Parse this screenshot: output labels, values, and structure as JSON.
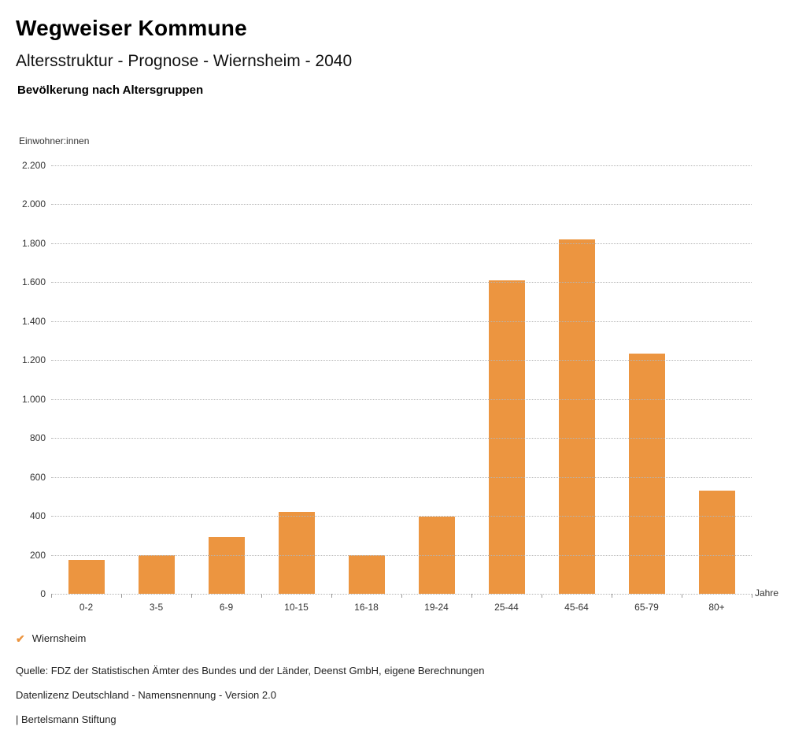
{
  "header": {
    "title": "Wegweiser Kommune",
    "subtitle": "Altersstruktur - Prognose - Wiernsheim - 2040",
    "chart_heading": "Bevölkerung nach Altersgruppen"
  },
  "chart_data": {
    "type": "bar",
    "title": "Bevölkerung nach Altersgruppen",
    "categories": [
      "0-2",
      "3-5",
      "6-9",
      "10-15",
      "16-18",
      "19-24",
      "25-44",
      "45-64",
      "65-79",
      "80+"
    ],
    "values": [
      175,
      200,
      290,
      420,
      200,
      395,
      1610,
      1820,
      1235,
      530
    ],
    "series_name": "Wiernsheim",
    "xlabel": "Jahre",
    "ylabel": "Einwohner:innen",
    "ylim": [
      0,
      2200
    ],
    "ytick_step": 200,
    "ytick_labels": [
      "0",
      "200",
      "400",
      "600",
      "800",
      "1.000",
      "1.200",
      "1.400",
      "1.600",
      "1.800",
      "2.000",
      "2.200"
    ],
    "grid": "horizontal-dotted",
    "legend_position": "bottom-left",
    "bar_color": "#EC9540"
  },
  "legend": {
    "items": [
      {
        "label": "Wiernsheim",
        "color": "#EC9540",
        "icon": "check-icon"
      }
    ]
  },
  "footer": {
    "source": "Quelle: FDZ der Statistischen Ämter des Bundes und der Länder, Deenst GmbH, eigene Berechnungen",
    "license": "Datenlizenz Deutschland - Namensnennung - Version 2.0",
    "attribution": "| Bertelsmann Stiftung"
  }
}
